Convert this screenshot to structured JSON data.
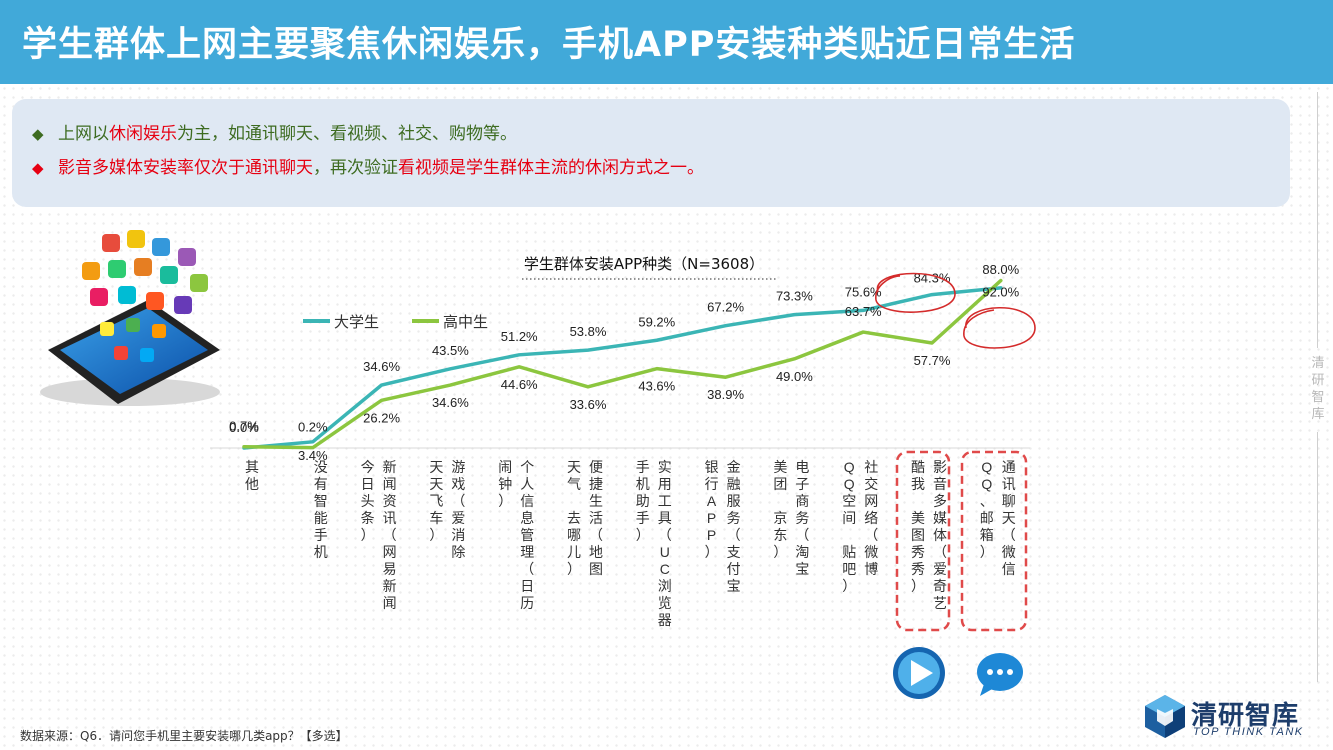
{
  "header": {
    "title": "学生群体上网主要聚焦休闲娱乐，手机APP安装种类贴近日常生活"
  },
  "summary": {
    "line1": {
      "bullet": "◆",
      "pre": "上网以",
      "highlight": "休闲娱乐",
      "post": "为主，如通讯聊天、看视频、社交、购物等。"
    },
    "line2": {
      "bullet": "◆",
      "p1": "影音多媒体安装率仅次于",
      "p2": "通讯聊天",
      "p3": "，再次验证",
      "p4": "看视频是学生群体主流的休闲方式之一。"
    }
  },
  "chart_data": {
    "type": "line",
    "title": "学生群体安装APP种类（N=3608）",
    "categories": [
      "其他",
      "没有智能手机",
      "新闻资讯（网易新闻　今日头条）",
      "游戏（爱消除　天天飞车）",
      "个人信息管理（日历　闹钟）",
      "便捷生活（地图　天气　去哪儿）",
      "实用工具（UC浏览器　手机助手）",
      "金融服务（支付宝　银行APP）",
      "电子商务（淘宝　美团　京东）",
      "社交网络（微博　QQ空间　贴吧）",
      "影音多媒体（爱奇艺　酷我　美图秀秀）",
      "通讯聊天（微信　QQ、邮箱）"
    ],
    "series": [
      {
        "name": "大学生",
        "color": "#3bb5b5",
        "values": [
          0.0,
          3.4,
          34.6,
          43.5,
          51.2,
          53.8,
          59.2,
          67.2,
          73.3,
          75.6,
          84.3,
          88.0
        ],
        "labels": [
          "0.0%",
          "3.4%",
          "34.6%",
          "43.5%",
          "51.2%",
          "53.8%",
          "59.2%",
          "67.2%",
          "73.3%",
          "75.6%",
          "84.3%",
          "88.0%"
        ]
      },
      {
        "name": "高中生",
        "color": "#8cc63f",
        "values": [
          0.7,
          0.2,
          26.2,
          34.6,
          44.6,
          33.6,
          43.6,
          38.9,
          49.0,
          63.7,
          57.7,
          92.0
        ],
        "labels": [
          "0.7%",
          "0.2%",
          "26.2%",
          "34.6%",
          "44.6%",
          "33.6%",
          "43.6%",
          "38.9%",
          "49.0%",
          "63.7%",
          "57.7%",
          "92.0%"
        ]
      }
    ],
    "ylim": [
      0,
      100
    ],
    "legend": "top-left",
    "highlight_categories": [
      "影音多媒体（爱奇艺　酷我　美图秀秀）",
      "通讯聊天（微信　QQ、邮箱）"
    ],
    "highlight_labels": [
      "84.3%",
      "92.0%"
    ]
  },
  "side": {
    "label": "清研智库"
  },
  "footer": {
    "source": "数据来源：Q6．请问您手机里主要安装哪几类app？【多选】"
  },
  "logo": {
    "cn": "清研智库",
    "en": "TOP THINK TANK"
  }
}
